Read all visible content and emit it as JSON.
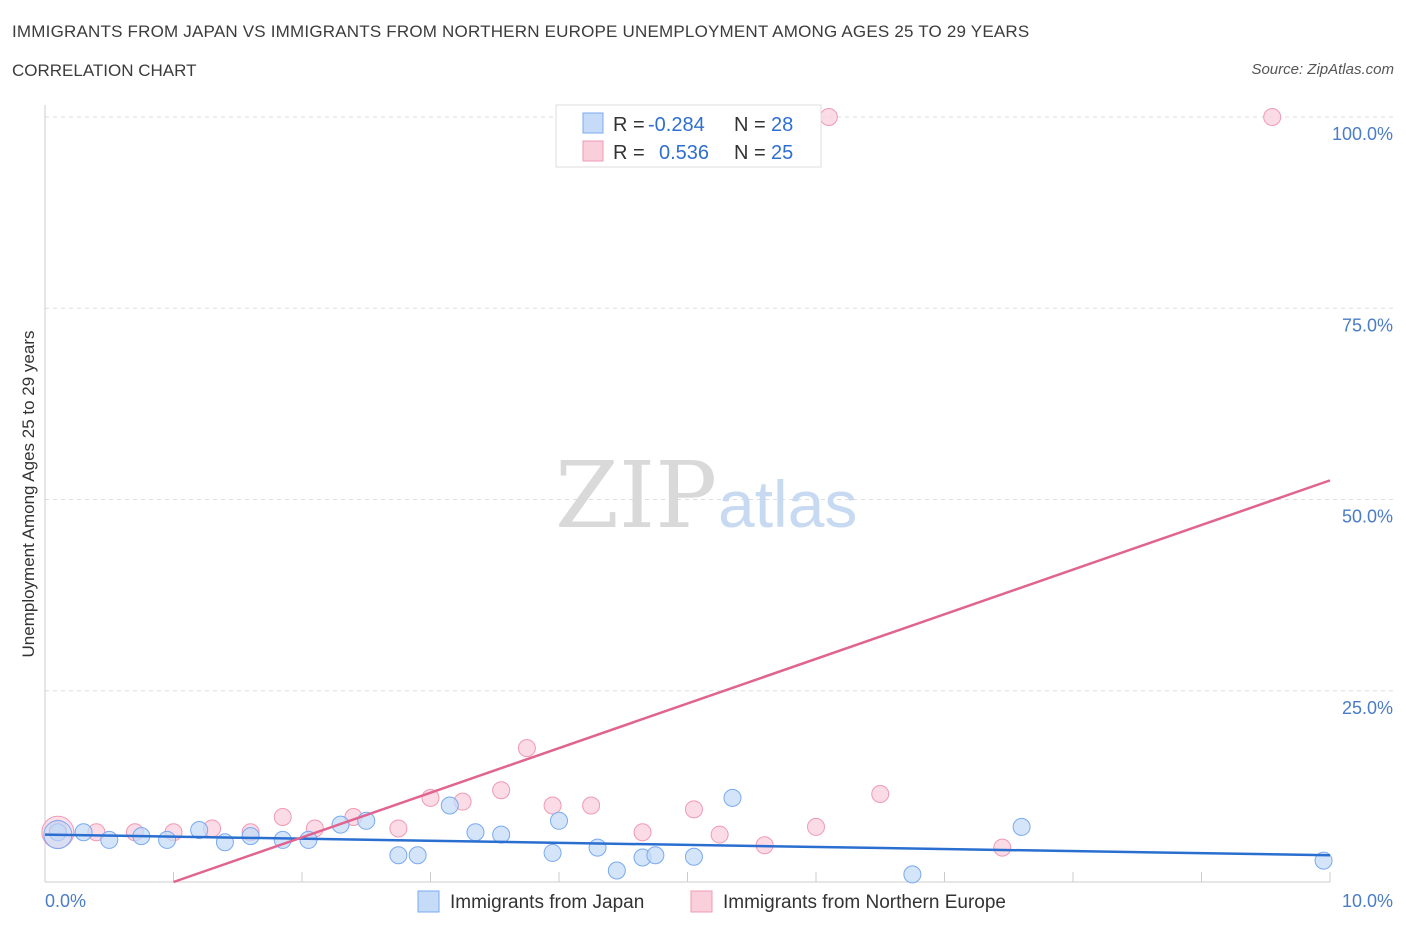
{
  "header": {
    "title": "IMMIGRANTS FROM JAPAN VS IMMIGRANTS FROM NORTHERN EUROPE UNEMPLOYMENT AMONG AGES 25 TO 29 YEARS",
    "subtitle": "CORRELATION CHART",
    "source": "Source: ZipAtlas.com"
  },
  "watermark": {
    "zip": "ZIP",
    "atlas": "atlas"
  },
  "legend": {
    "japan": {
      "r_label": "R =",
      "r_value": "-0.284",
      "n_label": "N =",
      "n_value": "28"
    },
    "europe": {
      "r_label": "R =",
      "r_value": "0.536",
      "n_label": "N =",
      "n_value": "25"
    }
  },
  "chart_data": {
    "type": "scatter",
    "title": "IMMIGRANTS FROM JAPAN VS IMMIGRANTS FROM NORTHERN EUROPE UNEMPLOYMENT AMONG AGES 25 TO 29 YEARS",
    "xlabel": "",
    "ylabel": "Unemployment Among Ages 25 to 29 years",
    "xlim": [
      0,
      10
    ],
    "ylim": [
      0,
      100
    ],
    "x_tick_labels": [
      "0.0%",
      "10.0%"
    ],
    "y_tick_labels": [
      "100.0%",
      "75.0%",
      "50.0%",
      "25.0%"
    ],
    "y_tick_values": [
      100,
      75,
      50,
      25
    ],
    "grid": true,
    "legend_position": "top-center",
    "series": [
      {
        "name": "Immigrants from Japan",
        "color": "#7aaaf0",
        "fill": "#c6dbf7",
        "line_color": "#2a6fd0",
        "trend": [
          [
            0,
            6.2
          ],
          [
            10,
            3.5
          ]
        ],
        "points": [
          [
            0.1,
            6.5
          ],
          [
            0.3,
            6.5
          ],
          [
            0.5,
            5.5
          ],
          [
            0.75,
            6.0
          ],
          [
            0.95,
            5.5
          ],
          [
            1.2,
            6.8
          ],
          [
            1.4,
            5.2
          ],
          [
            1.6,
            6.0
          ],
          [
            1.85,
            5.5
          ],
          [
            2.05,
            5.5
          ],
          [
            2.3,
            7.5
          ],
          [
            2.5,
            8.0
          ],
          [
            2.75,
            3.5
          ],
          [
            2.9,
            3.5
          ],
          [
            3.15,
            10.0
          ],
          [
            3.35,
            6.5
          ],
          [
            3.55,
            6.2
          ],
          [
            3.95,
            3.8
          ],
          [
            4.0,
            8.0
          ],
          [
            4.3,
            4.5
          ],
          [
            4.45,
            1.5
          ],
          [
            4.65,
            3.2
          ],
          [
            4.75,
            3.5
          ],
          [
            5.05,
            3.3
          ],
          [
            5.35,
            11.0
          ],
          [
            6.75,
            1.0
          ],
          [
            7.6,
            7.2
          ],
          [
            9.95,
            2.8
          ]
        ]
      },
      {
        "name": "Immigrants from Northern Europe",
        "color": "#f09ab4",
        "fill": "#f9cfdc",
        "line_color": "#e0648f",
        "trend": [
          [
            1.0,
            0
          ],
          [
            10,
            52.5
          ]
        ],
        "points": [
          [
            0.1,
            7.0
          ],
          [
            0.4,
            6.5
          ],
          [
            0.7,
            6.5
          ],
          [
            1.0,
            6.5
          ],
          [
            1.3,
            7.0
          ],
          [
            1.6,
            6.5
          ],
          [
            1.85,
            8.5
          ],
          [
            2.1,
            7.0
          ],
          [
            2.4,
            8.5
          ],
          [
            2.75,
            7.0
          ],
          [
            3.0,
            11.0
          ],
          [
            3.25,
            10.5
          ],
          [
            3.55,
            12.0
          ],
          [
            3.75,
            17.5
          ],
          [
            3.95,
            10.0
          ],
          [
            4.25,
            10.0
          ],
          [
            4.65,
            6.5
          ],
          [
            5.05,
            9.5
          ],
          [
            5.25,
            6.2
          ],
          [
            5.6,
            4.8
          ],
          [
            6.0,
            7.2
          ],
          [
            6.5,
            11.5
          ],
          [
            7.45,
            4.5
          ],
          [
            6.1,
            100.0
          ],
          [
            9.55,
            100.0
          ]
        ]
      }
    ]
  }
}
